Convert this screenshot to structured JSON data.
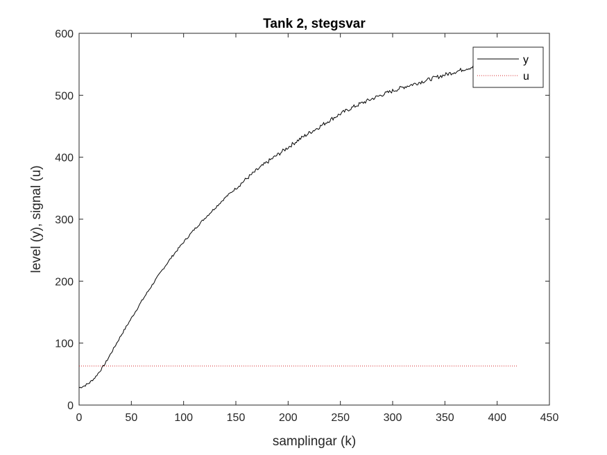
{
  "chart_data": {
    "type": "line",
    "title": "Tank 2, stegsvar",
    "xlabel": "samplingar (k)",
    "ylabel": "level (y), signal (u)",
    "xlim": [
      0,
      450
    ],
    "ylim": [
      0,
      600
    ],
    "xticks": [
      0,
      50,
      100,
      150,
      200,
      250,
      300,
      350,
      400,
      450
    ],
    "yticks": [
      0,
      100,
      200,
      300,
      400,
      500,
      600
    ],
    "xtick_labels": [
      "0",
      "50",
      "100",
      "150",
      "200",
      "250",
      "300",
      "350",
      "400",
      "450"
    ],
    "ytick_labels": [
      "0",
      "100",
      "200",
      "300",
      "400",
      "500",
      "600"
    ],
    "grid": false,
    "legend_position": "top-right",
    "series": [
      {
        "name": "y",
        "color": "#000000",
        "style": "solid",
        "x": [
          0,
          5,
          10,
          15,
          20,
          25,
          30,
          40,
          50,
          60,
          70,
          80,
          90,
          100,
          110,
          120,
          130,
          140,
          150,
          160,
          170,
          180,
          190,
          200,
          210,
          220,
          230,
          240,
          250,
          260,
          270,
          280,
          290,
          300,
          310,
          320,
          330,
          340,
          350,
          360,
          370,
          380
        ],
        "y": [
          28,
          31,
          36,
          44,
          55,
          67,
          82,
          112,
          140,
          168,
          194,
          219,
          242,
          263,
          283,
          301,
          318,
          335,
          350,
          365,
          379,
          392,
          404,
          416,
          428,
          439,
          449,
          460,
          470,
          479,
          487,
          494,
          501,
          507,
          513,
          518,
          523,
          528,
          533,
          538,
          543,
          547
        ]
      },
      {
        "name": "u",
        "color": "#d62728",
        "style": "dotted",
        "x": [
          0,
          420
        ],
        "y": [
          63,
          63
        ]
      }
    ]
  }
}
